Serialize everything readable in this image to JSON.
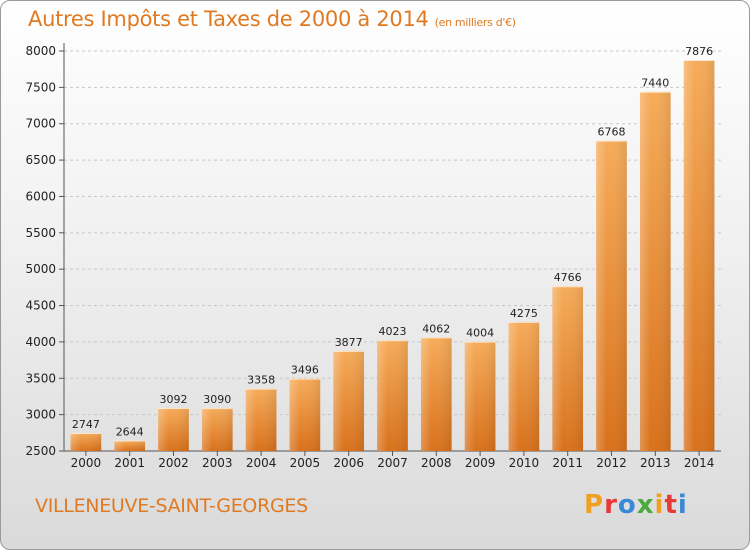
{
  "header": {
    "title": "Autres Impôts et Taxes de 2000 à 2014",
    "unit": "(en milliers d'€)"
  },
  "footer": {
    "city": "VILLENEUVE-SAINT-GEORGES",
    "logo_letters": [
      "P",
      "r",
      "o",
      "x",
      "i",
      "t",
      "i"
    ],
    "logo_colors": [
      "#f0a020",
      "#e83838",
      "#3a88d8",
      "#4aaa3a",
      "#f0a020",
      "#e83838",
      "#3a88d8"
    ]
  },
  "chart_data": {
    "type": "bar",
    "title": "Autres Impôts et Taxes de 2000 à 2014",
    "subtitle": "(en milliers d'€)",
    "xlabel": "",
    "ylabel": "",
    "categories": [
      "2000",
      "2001",
      "2002",
      "2003",
      "2004",
      "2005",
      "2006",
      "2007",
      "2008",
      "2009",
      "2010",
      "2011",
      "2012",
      "2013",
      "2014"
    ],
    "values": [
      2747,
      2644,
      3092,
      3090,
      3358,
      3496,
      3877,
      4023,
      4062,
      4004,
      4275,
      4766,
      6768,
      7440,
      7876
    ],
    "ylim": [
      2500,
      8000
    ],
    "yticks": [
      2500,
      3000,
      3500,
      4000,
      4500,
      5000,
      5500,
      6000,
      6500,
      7000,
      7500,
      8000
    ],
    "grid": true,
    "bar_color": "#f08a28"
  }
}
